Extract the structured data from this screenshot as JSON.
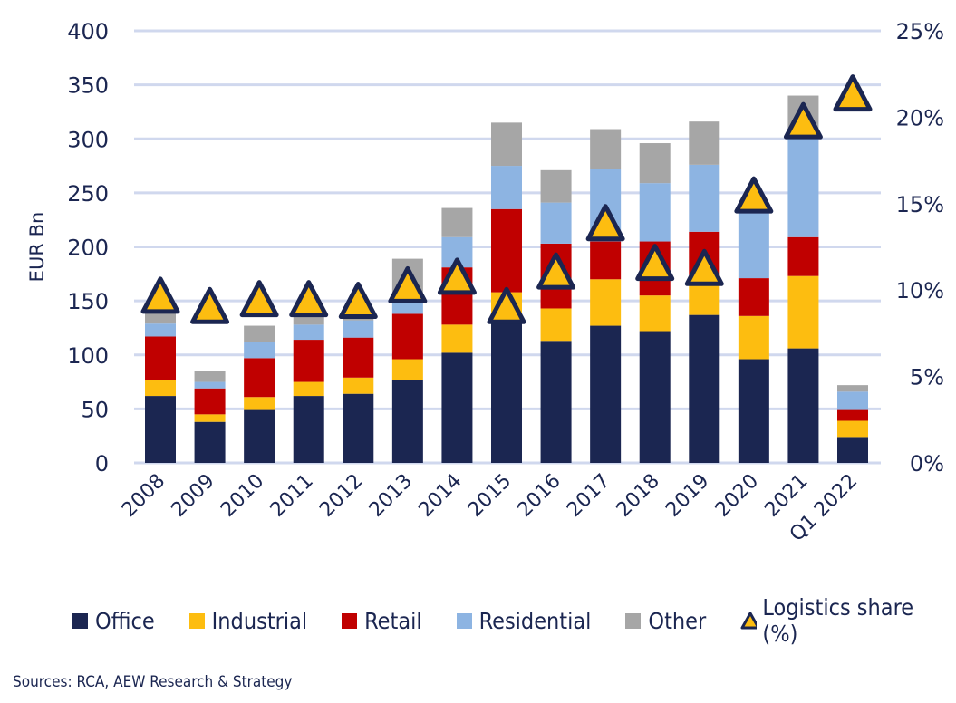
{
  "chart_data": {
    "type": "bar",
    "stacked": true,
    "categories": [
      "2008",
      "2009",
      "2010",
      "2011",
      "2012",
      "2013",
      "2014",
      "2015",
      "2016",
      "2017",
      "2018",
      "2019",
      "2020",
      "2021",
      "Q1 2022"
    ],
    "series": [
      {
        "name": "Office",
        "color": "#1b2651",
        "values": [
          62,
          38,
          49,
          62,
          64,
          77,
          102,
          130,
          113,
          127,
          122,
          137,
          96,
          106,
          24
        ]
      },
      {
        "name": "Industrial",
        "color": "#fdbd10",
        "values": [
          15,
          7,
          12,
          13,
          15,
          19,
          26,
          28,
          30,
          43,
          33,
          28,
          40,
          67,
          15
        ]
      },
      {
        "name": "Retail",
        "color": "#c00000",
        "values": [
          40,
          24,
          36,
          39,
          37,
          42,
          53,
          77,
          60,
          35,
          50,
          49,
          35,
          36,
          10
        ]
      },
      {
        "name": "Residential",
        "color": "#8db4e2",
        "values": [
          12,
          6,
          15,
          14,
          16,
          11,
          28,
          40,
          38,
          67,
          54,
          62,
          60,
          91,
          17
        ]
      },
      {
        "name": "Other",
        "color": "#a6a6a6",
        "values": [
          10,
          10,
          15,
          7,
          6,
          40,
          27,
          40,
          30,
          37,
          37,
          40,
          0,
          40,
          6
        ]
      }
    ],
    "line_series": {
      "name": "Logistics share (%)",
      "marker": "triangle",
      "axis": "right",
      "values": [
        9.6,
        9.0,
        9.4,
        9.4,
        9.3,
        10.2,
        10.7,
        9.0,
        11.0,
        13.8,
        11.5,
        11.2,
        15.4,
        19.7,
        21.3
      ]
    },
    "ylabel": "EUR Bn",
    "ylim": [
      0,
      400
    ],
    "yticks": [
      "0",
      "50",
      "100",
      "150",
      "200",
      "250",
      "300",
      "350",
      "400"
    ],
    "y2lim": [
      0,
      25
    ],
    "y2ticks": [
      "0%",
      "5%",
      "10%",
      "15%",
      "20%",
      "25%"
    ],
    "grid": true,
    "legend_placement": "bottom"
  },
  "source": "Sources: RCA, AEW Research & Strategy"
}
